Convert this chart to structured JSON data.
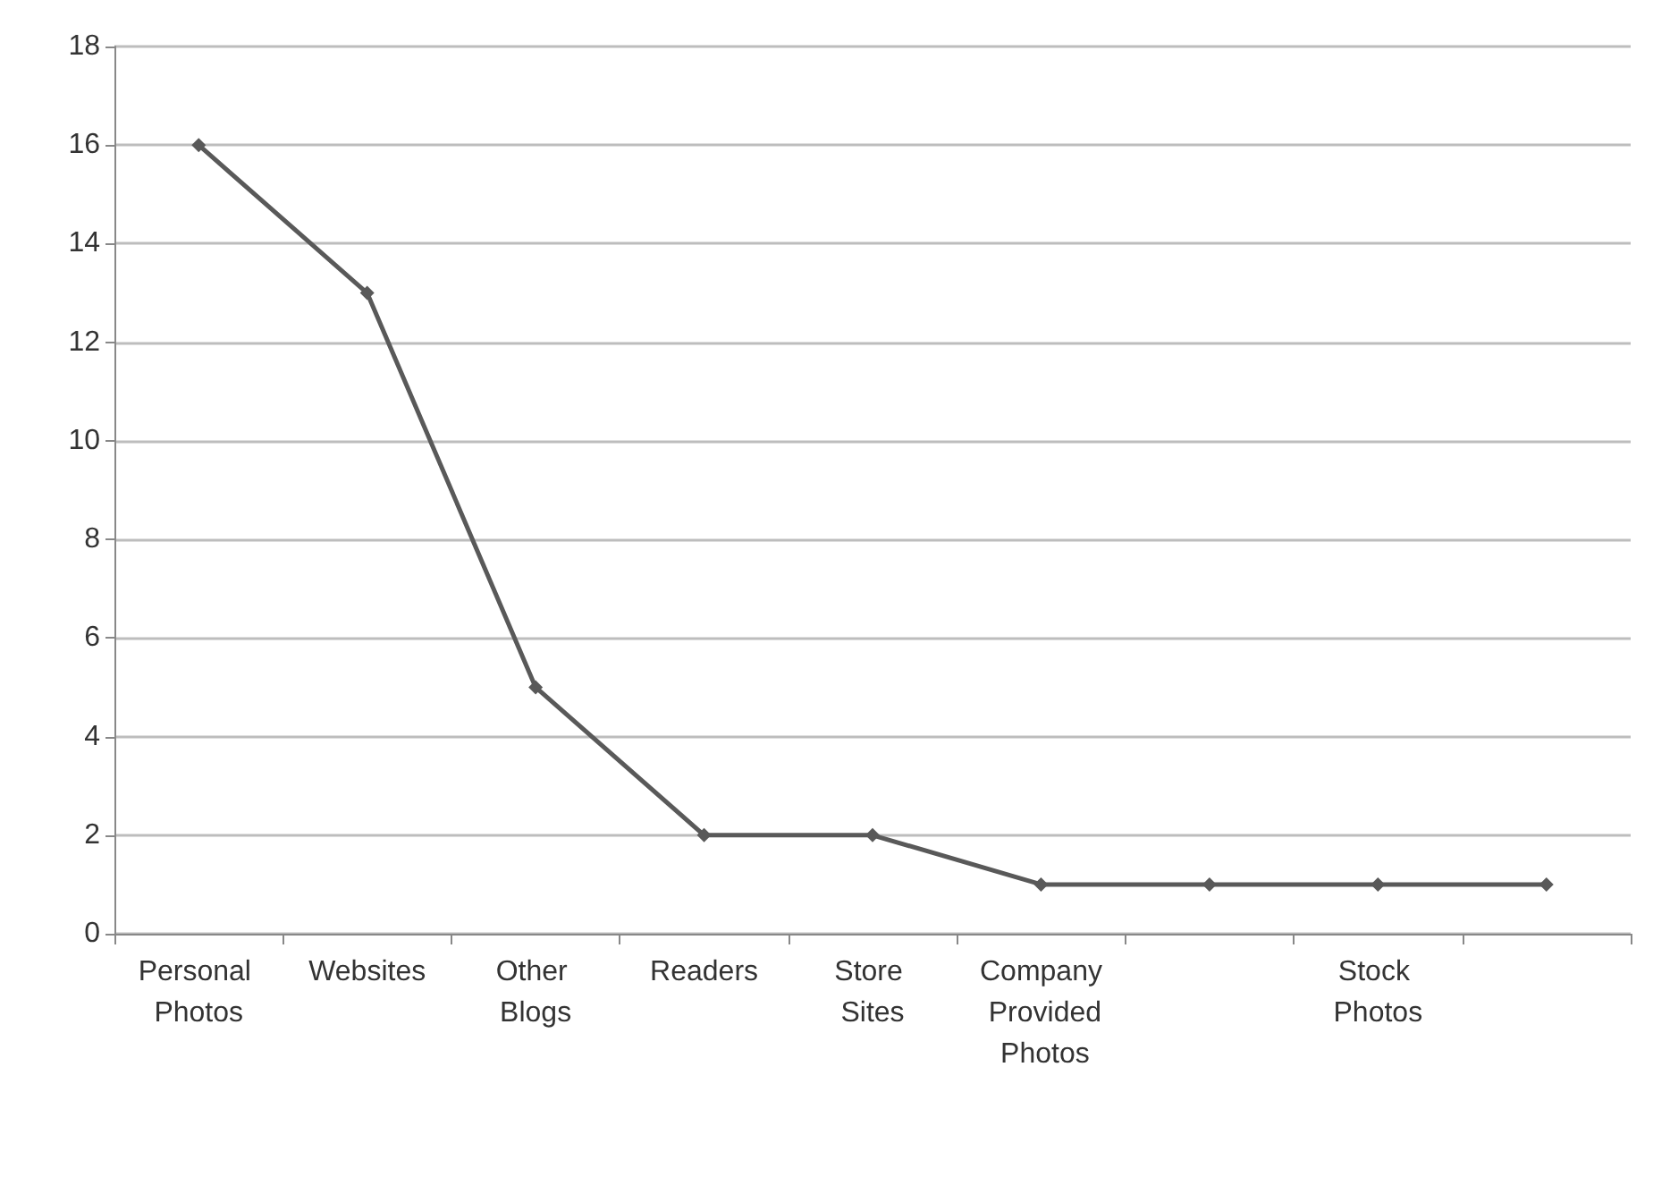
{
  "chart_data": {
    "type": "line",
    "categories": [
      "Personal Photos",
      "Websites",
      "Other Blogs",
      "Readers",
      "Store Sites",
      "Company Provided Photos",
      null,
      "Stock Photos",
      null
    ],
    "series": [
      {
        "color": "#595959",
        "values": [
          16,
          13,
          5,
          2,
          2,
          1,
          1,
          1,
          1
        ]
      }
    ],
    "ylim": [
      0,
      18
    ],
    "yticks": [
      0,
      2,
      4,
      6,
      8,
      10,
      12,
      14,
      16,
      18
    ],
    "grid": "y",
    "marker": "diamond",
    "line_style": "solid"
  }
}
